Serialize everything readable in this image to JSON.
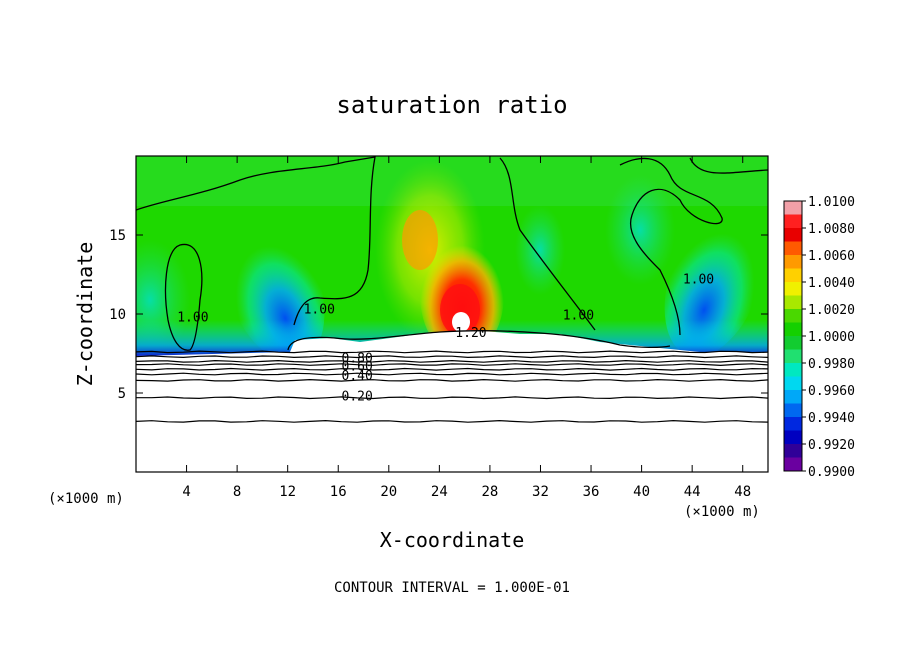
{
  "chart_data": {
    "type": "heatmap",
    "title": "saturation ratio",
    "xlabel": "X-coordinate",
    "ylabel": "Z-coordinate",
    "x_unit": "(×1000 m)",
    "x_unit_right": "(×1000 m)",
    "footer": "CONTOUR INTERVAL = 1.000E-01",
    "xlim": [
      0,
      50
    ],
    "ylim": [
      0,
      20
    ],
    "x_ticks": [
      4,
      8,
      12,
      16,
      20,
      24,
      28,
      32,
      36,
      40,
      44,
      48
    ],
    "y_ticks": [
      5,
      10,
      15
    ],
    "colorbar": {
      "ticks": [
        "1.0100",
        "1.0080",
        "1.0060",
        "1.0040",
        "1.0020",
        "1.0000",
        "0.9980",
        "0.9960",
        "0.9940",
        "0.9920",
        "0.9900"
      ],
      "colors": [
        "#f2a0a8",
        "#ff2020",
        "#e80000",
        "#ff5a00",
        "#ff9a00",
        "#ffd000",
        "#f0f000",
        "#a8e800",
        "#4ad800",
        "#14d000",
        "#12cc30",
        "#20e070",
        "#00e8c0",
        "#00d8f0",
        "#00a8f8",
        "#0068f0",
        "#0028e0",
        "#0000c0",
        "#300098",
        "#6a00a0"
      ],
      "vmin": 0.99,
      "vmax": 1.01
    },
    "contour_labels": [
      {
        "text": "1.00",
        "x": 4.5,
        "z": 9.6
      },
      {
        "text": "1.00",
        "x": 14.5,
        "z": 10.1
      },
      {
        "text": "1.20",
        "x": 26.5,
        "z": 8.6
      },
      {
        "text": "1.00",
        "x": 35.0,
        "z": 9.7
      },
      {
        "text": "1.00",
        "x": 44.5,
        "z": 12.0
      },
      {
        "text": "0.80",
        "x": 17.5,
        "z": 7.0
      },
      {
        "text": "0.60",
        "x": 17.5,
        "z": 6.5
      },
      {
        "text": "0.40",
        "x": 17.5,
        "z": 5.9
      },
      {
        "text": "0.20",
        "x": 17.5,
        "z": 4.6
      }
    ],
    "stable_contours_z": [
      7.6,
      7.3,
      7.0,
      6.8,
      6.5,
      6.2,
      5.8,
      4.7,
      3.2
    ]
  }
}
